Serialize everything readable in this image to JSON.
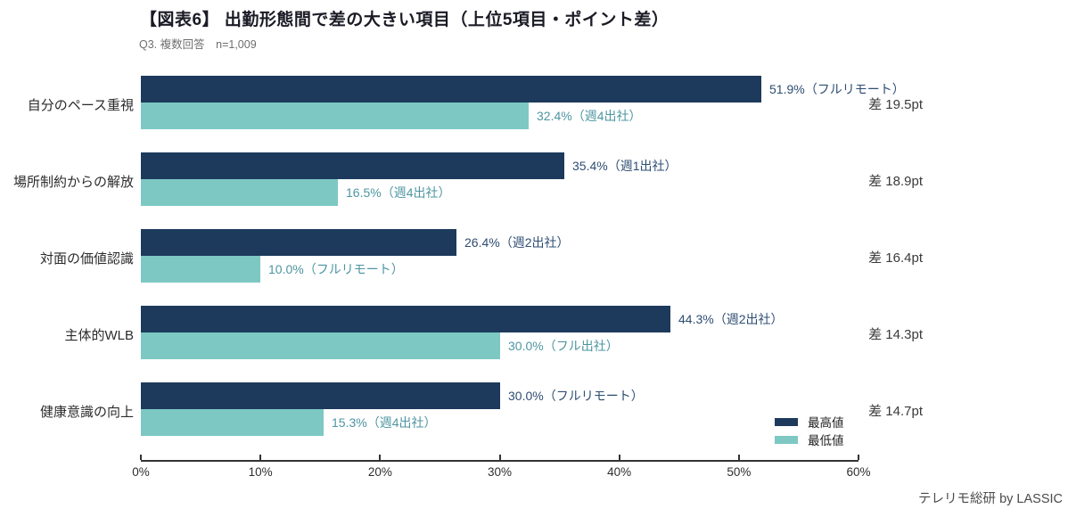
{
  "page": {
    "title": "【図表6】 出勤形態間で差の大きい項目（上位5項目・ポイント差）",
    "subtitle": "Q3. 複数回答　n=1,009",
    "footer": "テレリモ総研 by LASSIC"
  },
  "colors": {
    "max_bar": "#1d3a5c",
    "min_bar": "#7dc8c3",
    "max_label_text": "#2e4d73",
    "min_label_text": "#4d95a1",
    "diff_text": "#3a3a3a",
    "axis": "#333333"
  },
  "legend": {
    "items": [
      {
        "label": "最高値",
        "color": "#1d3a5c"
      },
      {
        "label": "最低値",
        "color": "#7dc8c3"
      }
    ]
  },
  "chart_data": {
    "type": "bar",
    "orientation": "horizontal",
    "title": "【図表6】 出勤形態間で差の大きい項目（上位5項目・ポイント差）",
    "subtitle": "Q3. 複数回答　n=1,009",
    "xlabel": "",
    "ylabel": "",
    "xlim": [
      0,
      60
    ],
    "x_tick_labels": [
      "0%",
      "10%",
      "20%",
      "30%",
      "40%",
      "50%",
      "60%"
    ],
    "grid": false,
    "legend_entries": [
      "最高値",
      "最低値"
    ],
    "legend_position": "lower-right",
    "categories": [
      "自分のペース重視",
      "場所制約からの解放",
      "対面の価値認識",
      "主体的WLB",
      "健康意識の向上"
    ],
    "groups": [
      {
        "category": "自分のペース重視",
        "max_value": 51.9,
        "max_label": "51.9%（フルリモート）",
        "min_value": 32.4,
        "min_label": "32.4%（週4出社）",
        "diff_pt": 19.5,
        "diff_label": "差 19.5pt"
      },
      {
        "category": "場所制約からの解放",
        "max_value": 35.4,
        "max_label": "35.4%（週1出社）",
        "min_value": 16.5,
        "min_label": "16.5%（週4出社）",
        "diff_pt": 18.9,
        "diff_label": "差 18.9pt"
      },
      {
        "category": "対面の価値認識",
        "max_value": 26.4,
        "max_label": "26.4%（週2出社）",
        "min_value": 10.0,
        "min_label": "10.0%（フルリモート）",
        "diff_pt": 16.4,
        "diff_label": "差 16.4pt"
      },
      {
        "category": "主体的WLB",
        "max_value": 44.3,
        "max_label": "44.3%（週2出社）",
        "min_value": 30.0,
        "min_label": "30.0%（フル出社）",
        "diff_pt": 14.3,
        "diff_label": "差 14.3pt"
      },
      {
        "category": "健康意識の向上",
        "max_value": 30.0,
        "max_label": "30.0%（フルリモート）",
        "min_value": 15.3,
        "min_label": "15.3%（週4出社）",
        "diff_pt": 14.7,
        "diff_label": "差 14.7pt"
      }
    ]
  }
}
